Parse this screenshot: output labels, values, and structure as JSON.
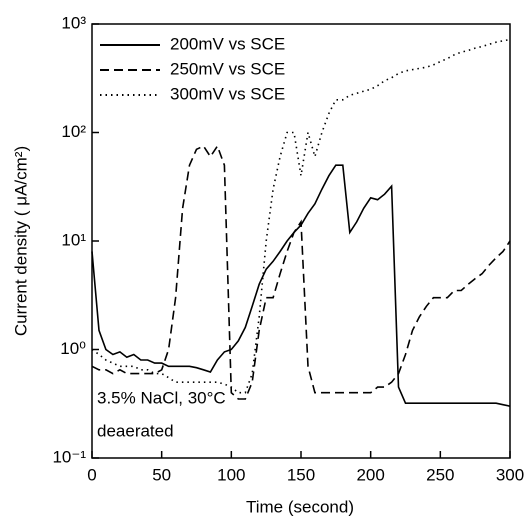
{
  "chart_data": {
    "type": "line",
    "xlabel": "Time (second)",
    "ylabel": "Current density ( μA/cm²)",
    "annotations": [
      "3.5% NaCl, 30°C",
      "deaerated"
    ],
    "log_y": true,
    "legend": "upper left",
    "xlim": [
      0,
      300
    ],
    "xticks": [
      0,
      50,
      100,
      150,
      200,
      250,
      300
    ],
    "ylim": [
      0.1,
      1000
    ],
    "yticks": [
      {
        "value": 0.1,
        "label": "10⁻¹"
      },
      {
        "value": 1,
        "label": "10⁰"
      },
      {
        "value": 10,
        "label": "10¹"
      },
      {
        "value": 100,
        "label": "10²"
      },
      {
        "value": 1000,
        "label": "10³"
      }
    ],
    "x": [
      0,
      5,
      10,
      15,
      20,
      25,
      30,
      35,
      40,
      45,
      50,
      55,
      60,
      65,
      70,
      75,
      80,
      85,
      90,
      95,
      100,
      105,
      110,
      115,
      120,
      125,
      130,
      135,
      140,
      145,
      150,
      155,
      160,
      165,
      170,
      175,
      180,
      185,
      190,
      195,
      200,
      205,
      210,
      215,
      220,
      225,
      230,
      235,
      240,
      245,
      250,
      255,
      260,
      265,
      270,
      275,
      280,
      285,
      290,
      295,
      300
    ],
    "series": [
      {
        "name": "200mV vs SCE",
        "color": "#000000",
        "style": "solid",
        "values": [
          8,
          1.5,
          1.0,
          0.9,
          0.95,
          0.85,
          0.9,
          0.8,
          0.8,
          0.75,
          0.75,
          0.7,
          0.7,
          0.7,
          0.7,
          0.68,
          0.65,
          0.62,
          0.8,
          0.95,
          1.0,
          1.2,
          1.6,
          2.5,
          4,
          5.5,
          6.5,
          8,
          10,
          12,
          14,
          18,
          22,
          30,
          40,
          50,
          50,
          12,
          15,
          20,
          25,
          24,
          27,
          32,
          0.45,
          0.32,
          0.32,
          0.32,
          0.32,
          0.32,
          0.32,
          0.32,
          0.32,
          0.32,
          0.32,
          0.32,
          0.32,
          0.32,
          0.32,
          0.31,
          0.3
        ]
      },
      {
        "name": "250mV vs SCE",
        "color": "#000000",
        "style": "dashed",
        "values": [
          0.7,
          0.65,
          0.65,
          0.6,
          0.65,
          0.6,
          0.6,
          0.6,
          0.6,
          0.6,
          0.65,
          1.0,
          3,
          20,
          50,
          70,
          75,
          60,
          75,
          50,
          0.4,
          0.35,
          0.35,
          0.5,
          1.5,
          3,
          3,
          5,
          8,
          12,
          15,
          0.7,
          0.4,
          0.4,
          0.4,
          0.4,
          0.4,
          0.4,
          0.4,
          0.4,
          0.4,
          0.45,
          0.45,
          0.5,
          0.6,
          0.9,
          1.5,
          2,
          2.5,
          3,
          3,
          3,
          3.5,
          3.5,
          4,
          4.5,
          5,
          6,
          7,
          8,
          10
        ]
      },
      {
        "name": "300mV vs SCE",
        "color": "#000000",
        "style": "dotted",
        "values": [
          1.0,
          0.9,
          0.8,
          0.75,
          0.7,
          0.7,
          0.7,
          0.65,
          0.65,
          0.6,
          0.6,
          0.55,
          0.5,
          0.5,
          0.5,
          0.5,
          0.5,
          0.5,
          0.5,
          0.48,
          0.45,
          0.4,
          0.4,
          0.6,
          2,
          10,
          30,
          60,
          100,
          100,
          40,
          100,
          60,
          100,
          150,
          200,
          200,
          220,
          230,
          240,
          250,
          270,
          300,
          320,
          350,
          370,
          380,
          390,
          400,
          420,
          450,
          480,
          520,
          550,
          570,
          600,
          620,
          650,
          680,
          700,
          720
        ]
      }
    ]
  }
}
